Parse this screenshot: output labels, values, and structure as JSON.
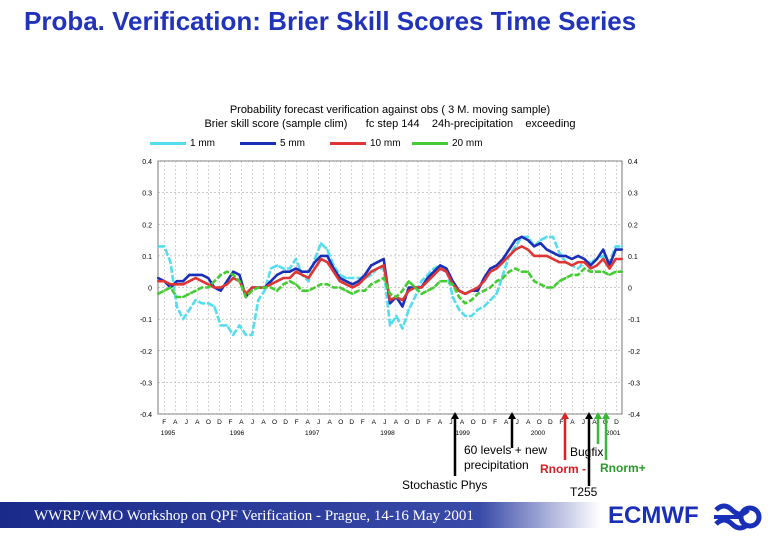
{
  "slide": {
    "title": "Proba. Verification:  Brier Skill Scores Time Series",
    "footer": "WWRP/WMO Workshop on QPF Verification - Prague, 14-16 May 2001",
    "brand": "ECMWF",
    "colors": {
      "title": "#2233bb",
      "footer_bar": "#1a2a8a",
      "brand": "#1a2fb8",
      "arrow_red": "#e02020",
      "arrow_green": "#33bb33"
    }
  },
  "chart_data": {
    "type": "line",
    "title": "Probability forecast verification against obs ( 3 M. moving sample)",
    "subtitle": "Brier skill score (sample clim)      fc step 144    24h-precipitation    exceeding",
    "ylim": [
      -0.4,
      0.4
    ],
    "yticks": [
      "0.4",
      "0.3",
      "0.2",
      "0.1",
      "0",
      "-0.1",
      "-0.2",
      "-0.3",
      "-0.4"
    ],
    "ytick_values": [
      0.4,
      0.3,
      0.2,
      0.1,
      0,
      -0.1,
      -0.2,
      -0.3,
      -0.4
    ],
    "x_month_labels": [
      "F",
      "A",
      "J",
      "A",
      "O",
      "D",
      "F",
      "A",
      "J",
      "A",
      "O",
      "D",
      "F",
      "A",
      "J",
      "A",
      "O",
      "D",
      "F",
      "A",
      "J",
      "A",
      "O",
      "D",
      "F",
      "A",
      "J",
      "A",
      "O",
      "D",
      "F",
      "A",
      "J",
      "A",
      "O",
      "D",
      "F",
      "A",
      "J",
      "A",
      "O",
      "D"
    ],
    "year_labels": [
      {
        "label": "1995",
        "x": 0
      },
      {
        "label": "1996",
        "x": 11
      },
      {
        "label": "1997",
        "x": 23
      },
      {
        "label": "1998",
        "x": 35
      },
      {
        "label": "1999",
        "x": 47
      },
      {
        "label": "2000",
        "x": 59
      },
      {
        "label": "2001",
        "x": 71
      }
    ],
    "x_count": 75,
    "grid": true,
    "legend_position": "top",
    "series": [
      {
        "name": "1 mm",
        "color": "#55ddee",
        "values": [
          0.13,
          0.13,
          0.08,
          -0.06,
          -0.1,
          -0.07,
          -0.04,
          -0.05,
          -0.05,
          -0.06,
          -0.12,
          -0.12,
          -0.15,
          -0.12,
          -0.15,
          -0.15,
          -0.04,
          -0.01,
          0.06,
          0.07,
          0.06,
          0.06,
          0.09,
          0.04,
          0.02,
          0.09,
          0.14,
          0.12,
          0.07,
          0.04,
          0.03,
          0.03,
          0.03,
          0.03,
          0.04,
          0.06,
          0.06,
          -0.12,
          -0.09,
          -0.13,
          -0.07,
          -0.03,
          0.02,
          0.04,
          0.06,
          0.07,
          0.06,
          -0.03,
          -0.07,
          -0.09,
          -0.09,
          -0.07,
          -0.06,
          -0.04,
          -0.02,
          0.04,
          0.1,
          0.13,
          0.16,
          0.16,
          0.13,
          0.15,
          0.16,
          0.16,
          0.11,
          0.08,
          0.07,
          0.06,
          0.08,
          0.08,
          0.09,
          0.1,
          0.08,
          0.13,
          0.13
        ]
      },
      {
        "name": "5 mm",
        "color": "#1a2fb8",
        "values": [
          0.03,
          0.02,
          0.0,
          0.02,
          0.02,
          0.04,
          0.04,
          0.04,
          0.03,
          0.0,
          -0.01,
          0.02,
          0.05,
          0.04,
          -0.03,
          0.0,
          0.0,
          0.0,
          0.02,
          0.04,
          0.05,
          0.05,
          0.06,
          0.05,
          0.05,
          0.08,
          0.1,
          0.1,
          0.06,
          0.03,
          0.02,
          0.01,
          0.02,
          0.04,
          0.07,
          0.08,
          0.09,
          -0.05,
          -0.03,
          -0.06,
          0.0,
          0.0,
          0.0,
          0.03,
          0.05,
          0.07,
          0.06,
          0.02,
          -0.01,
          -0.02,
          -0.01,
          -0.01,
          0.03,
          0.06,
          0.07,
          0.09,
          0.12,
          0.15,
          0.16,
          0.15,
          0.13,
          0.14,
          0.12,
          0.11,
          0.1,
          0.1,
          0.09,
          0.1,
          0.09,
          0.07,
          0.09,
          0.12,
          0.07,
          0.12,
          0.12
        ]
      },
      {
        "name": "10 mm",
        "color": "#e03535",
        "values": [
          0.02,
          0.02,
          0.01,
          0.01,
          0.01,
          0.02,
          0.03,
          0.02,
          0.01,
          0.0,
          0.0,
          0.01,
          0.03,
          0.02,
          -0.02,
          0.0,
          0.0,
          0.0,
          0.01,
          0.02,
          0.03,
          0.03,
          0.05,
          0.04,
          0.03,
          0.06,
          0.09,
          0.08,
          0.05,
          0.02,
          0.01,
          0.0,
          0.01,
          0.03,
          0.05,
          0.06,
          0.07,
          -0.04,
          -0.03,
          -0.04,
          -0.01,
          0.0,
          0.0,
          0.02,
          0.04,
          0.06,
          0.05,
          0.01,
          -0.01,
          -0.02,
          -0.01,
          0.0,
          0.02,
          0.05,
          0.06,
          0.08,
          0.1,
          0.12,
          0.13,
          0.12,
          0.1,
          0.1,
          0.1,
          0.09,
          0.08,
          0.08,
          0.07,
          0.08,
          0.08,
          0.06,
          0.07,
          0.09,
          0.06,
          0.09,
          0.09
        ]
      },
      {
        "name": "20 mm",
        "color": "#44cc33",
        "values": [
          -0.02,
          -0.01,
          0.0,
          -0.03,
          -0.03,
          -0.02,
          -0.01,
          0.0,
          0.0,
          0.02,
          0.04,
          0.05,
          0.04,
          0.02,
          -0.03,
          -0.01,
          0.0,
          0.0,
          0.0,
          -0.01,
          0.01,
          0.02,
          0.01,
          -0.01,
          -0.01,
          0.0,
          0.01,
          0.01,
          0.0,
          0.0,
          -0.01,
          -0.02,
          -0.01,
          -0.01,
          0.01,
          0.02,
          0.03,
          -0.02,
          -0.03,
          -0.01,
          0.02,
          0.0,
          -0.02,
          -0.01,
          0.0,
          0.02,
          0.02,
          0.01,
          -0.03,
          -0.05,
          -0.04,
          -0.02,
          -0.01,
          0.0,
          0.02,
          0.03,
          0.05,
          0.06,
          0.05,
          0.05,
          0.02,
          0.01,
          0.0,
          0.0,
          0.02,
          0.03,
          0.04,
          0.04,
          0.06,
          0.05,
          0.05,
          0.05,
          0.04,
          0.05,
          0.05
        ]
      }
    ],
    "annotations": [
      {
        "text": "60 levels + new precipitation",
        "x": 48
      },
      {
        "text": "Stochastic Phys",
        "x": 56
      },
      {
        "text": "Bugfix",
        "x": 63
      },
      {
        "text": "Rnorm -",
        "x": 63
      },
      {
        "text": "T255",
        "x": 67
      },
      {
        "text": "Rnorm+",
        "x": 69
      }
    ]
  }
}
